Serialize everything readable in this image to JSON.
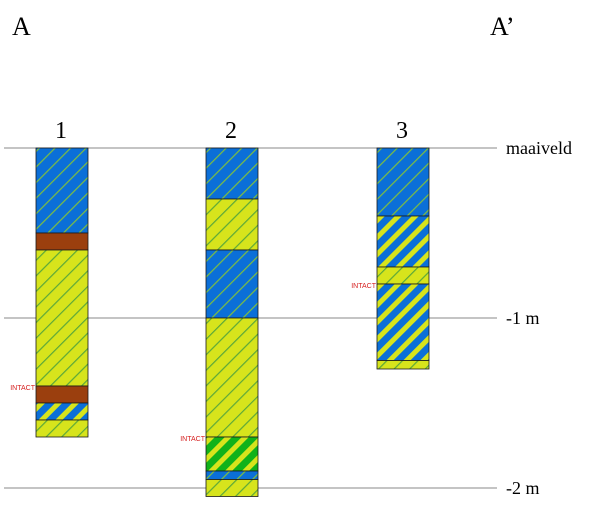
{
  "section": {
    "start_label": "A",
    "end_label": "A’"
  },
  "depth_axis": {
    "unit": "m",
    "range": [
      0,
      -2
    ],
    "levels": [
      {
        "depth": 0,
        "label": "maaiveld"
      },
      {
        "depth": -1,
        "label": "-1  m"
      },
      {
        "depth": -2,
        "label": "-2  m"
      }
    ]
  },
  "layer_types": {
    "blue_hatched": {
      "fill": "#0b6fd8",
      "hatch": "#7fbf3f",
      "hatch_style": "thin"
    },
    "yellow_hatched": {
      "fill": "#d7e41c",
      "hatch": "#5aa83a",
      "hatch_style": "thin"
    },
    "brown": {
      "fill": "#9b3f0e"
    },
    "blue_yellow_stripes": {
      "fill": "#0b6fd8",
      "hatch": "#d7e41c",
      "hatch_style": "bold"
    },
    "green_yellow_stripes": {
      "fill": "#11b21a",
      "hatch": "#d7e41c",
      "hatch_style": "bold"
    }
  },
  "colors": {
    "level_line": "#888888",
    "intact_text": "#d61f1f",
    "layer_border": "#1a1a1a"
  },
  "boreholes": [
    {
      "label": "1",
      "layers": [
        {
          "top": 0.0,
          "bottom": 0.5,
          "type": "blue_hatched"
        },
        {
          "top": 0.5,
          "bottom": 0.6,
          "type": "brown"
        },
        {
          "top": 0.6,
          "bottom": 1.4,
          "type": "yellow_hatched"
        },
        {
          "top": 1.4,
          "bottom": 1.5,
          "type": "brown"
        },
        {
          "top": 1.5,
          "bottom": 1.6,
          "type": "blue_yellow_stripes"
        },
        {
          "top": 1.6,
          "bottom": 1.7,
          "type": "yellow_hatched"
        }
      ],
      "intact": {
        "depth": 1.4,
        "text": "INTACT"
      }
    },
    {
      "label": "2",
      "layers": [
        {
          "top": 0.0,
          "bottom": 0.3,
          "type": "blue_hatched"
        },
        {
          "top": 0.3,
          "bottom": 0.6,
          "type": "yellow_hatched"
        },
        {
          "top": 0.6,
          "bottom": 1.0,
          "type": "blue_hatched"
        },
        {
          "top": 1.0,
          "bottom": 1.7,
          "type": "yellow_hatched"
        },
        {
          "top": 1.7,
          "bottom": 1.9,
          "type": "green_yellow_stripes"
        },
        {
          "top": 1.9,
          "bottom": 1.95,
          "type": "blue_hatched"
        },
        {
          "top": 1.95,
          "bottom": 2.05,
          "type": "yellow_hatched"
        }
      ],
      "intact": {
        "depth": 1.7,
        "text": "INTACT"
      }
    },
    {
      "label": "3",
      "layers": [
        {
          "top": 0.0,
          "bottom": 0.4,
          "type": "blue_hatched"
        },
        {
          "top": 0.4,
          "bottom": 0.7,
          "type": "blue_yellow_stripes"
        },
        {
          "top": 0.7,
          "bottom": 0.8,
          "type": "yellow_hatched"
        },
        {
          "top": 0.8,
          "bottom": 1.25,
          "type": "blue_yellow_stripes"
        },
        {
          "top": 1.25,
          "bottom": 1.3,
          "type": "yellow_hatched"
        }
      ],
      "intact": {
        "depth": 0.8,
        "text": "INTACT"
      }
    }
  ]
}
